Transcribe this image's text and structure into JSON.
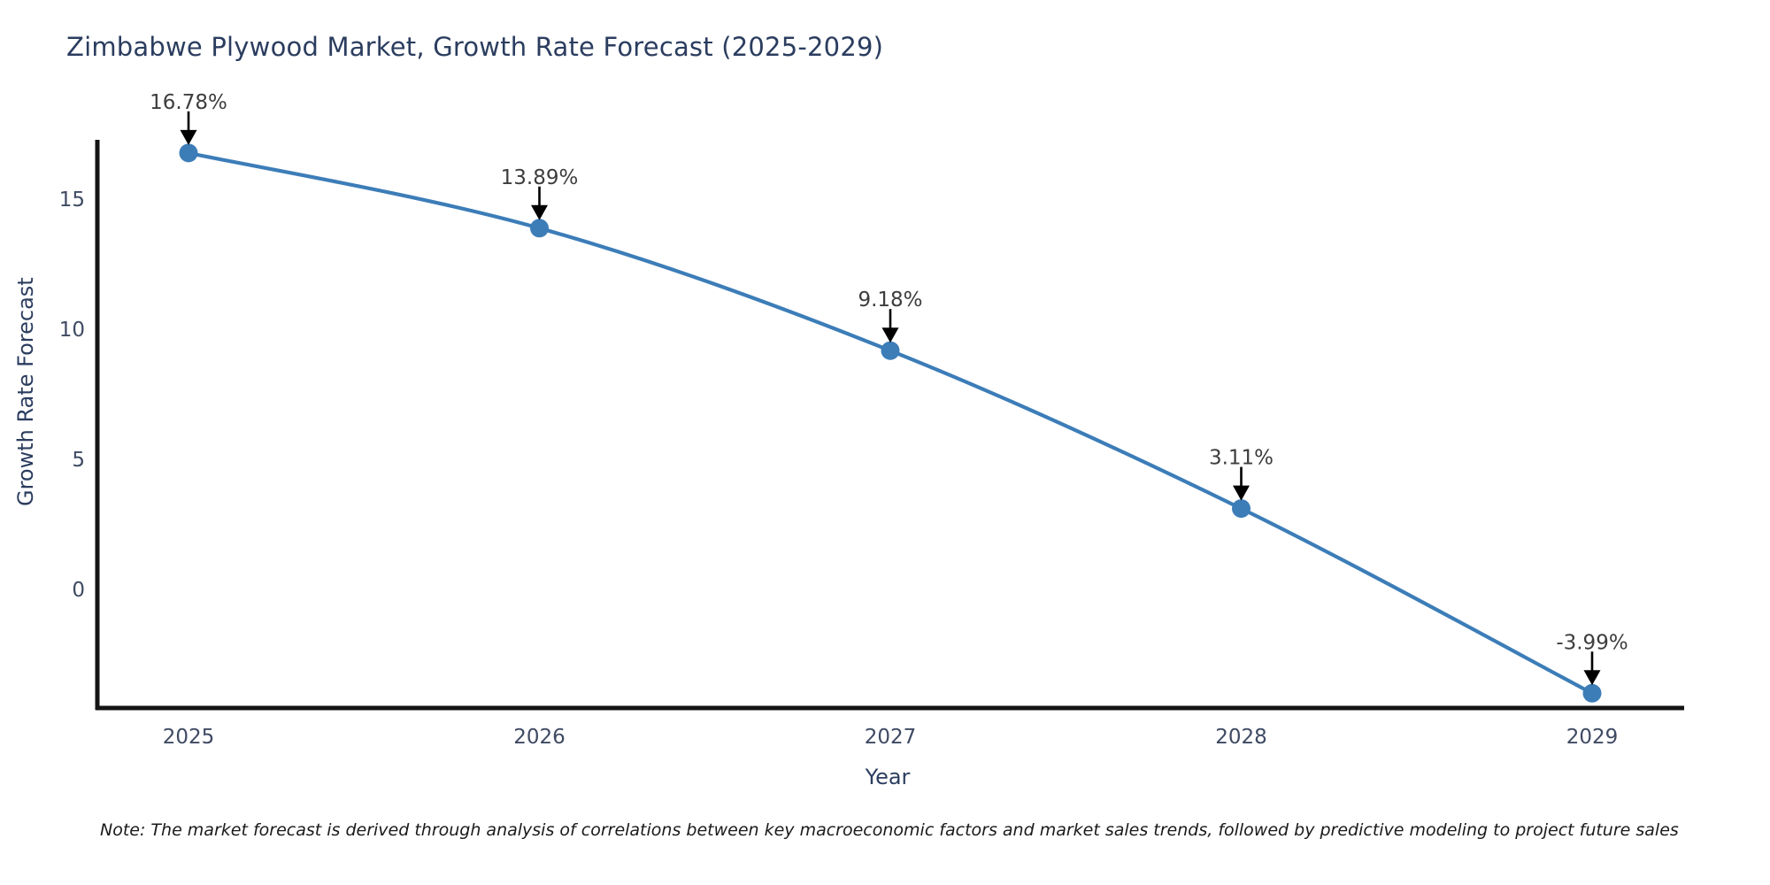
{
  "title": "Zimbabwe Plywood Market, Growth Rate Forecast (2025-2029)",
  "note": "Note: The market forecast is derived through analysis of correlations between key macroeconomic factors and market sales trends, followed by predictive modeling to project future sales",
  "chart_data": {
    "type": "line",
    "title": "Zimbabwe Plywood Market, Growth Rate Forecast (2025-2029)",
    "xlabel": "Year",
    "ylabel": "Growth Rate Forecast",
    "x": [
      2025,
      2026,
      2027,
      2028,
      2029
    ],
    "series": [
      {
        "name": "Growth Rate Forecast",
        "values": [
          16.78,
          13.89,
          9.18,
          3.11,
          -3.99
        ]
      }
    ],
    "point_labels": [
      "16.78%",
      "13.89%",
      "9.18%",
      "3.11%",
      "-3.99%"
    ],
    "yticks": [
      0,
      5,
      10,
      15
    ],
    "ylim": [
      -4.6,
      17.3
    ],
    "xlim": [
      2024.74,
      2029.27
    ],
    "line_shape": "spline",
    "grid": false,
    "legend": false,
    "colors": {
      "line": "#3c7db8",
      "marker": "#3c7db8",
      "axis": "#141414",
      "tick_label": "#3f4a63",
      "annotation_text": "#3d3d3d",
      "annotation_arrow": "#000000"
    }
  }
}
